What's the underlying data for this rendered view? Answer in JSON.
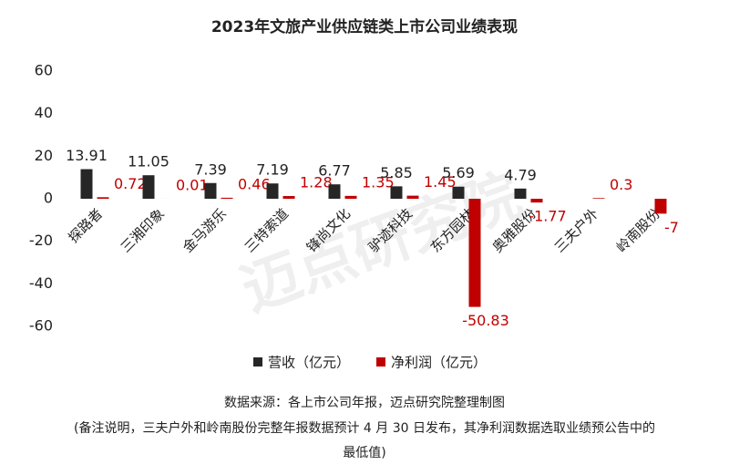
{
  "chart_data": {
    "type": "bar",
    "title": "2023年文旅产业供应链类上市公司业绩表现",
    "categories": [
      "探路者",
      "三湘印象",
      "金马游乐",
      "三特索道",
      "锋尚文化",
      "驴迹科技",
      "东方园林",
      "奥雅股份",
      "三夫户外",
      "岭南股份"
    ],
    "series": [
      {
        "name": "营收（亿元）",
        "color": "#262626",
        "values": [
          13.91,
          11.05,
          7.39,
          7.19,
          6.77,
          5.85,
          5.69,
          4.79,
          null,
          null
        ]
      },
      {
        "name": "净利润（亿元）",
        "color": "#c00000",
        "values": [
          0.72,
          0.01,
          0.46,
          1.28,
          1.35,
          1.45,
          -50.83,
          -1.77,
          0.3,
          -7
        ]
      }
    ],
    "ylim": [
      -60,
      60
    ],
    "yticks": [
      -60,
      -40,
      -20,
      0,
      20,
      40,
      60
    ],
    "grid": false,
    "watermark": "迈点研究院",
    "source": "数据来源：各上市公司年报，迈点研究院整理制图",
    "notes": [
      "(备注说明，三夫户外和岭南股份完整年报数据预计 4 月 30 日发布，其净利润数据选取业绩预公告中的",
      "最低值)"
    ]
  }
}
